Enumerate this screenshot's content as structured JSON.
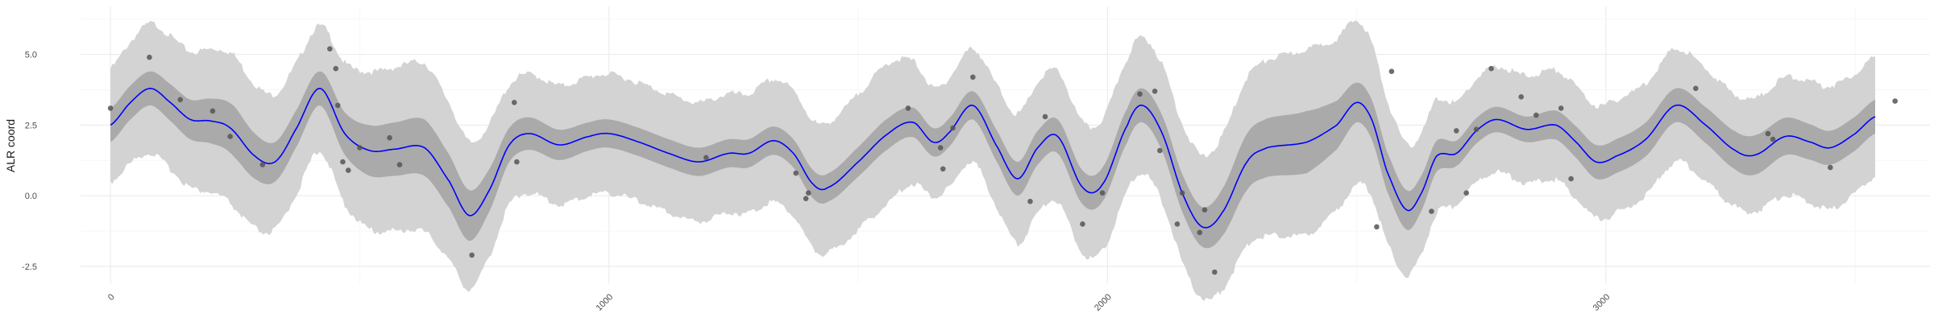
{
  "chart_data": {
    "type": "line",
    "title": "",
    "xlabel": "",
    "ylabel": "ALR coord",
    "xlim": [
      -60,
      3650
    ],
    "ylim": [
      -3.1,
      6.7
    ],
    "grid": true,
    "x_ticks": [
      {
        "value": 0,
        "label": "0"
      },
      {
        "value": 1000,
        "label": "1000"
      },
      {
        "value": 2000,
        "label": "2000"
      },
      {
        "value": 3000,
        "label": "3000"
      }
    ],
    "y_ticks": [
      {
        "value": -2.5,
        "label": "-2.5"
      },
      {
        "value": 0,
        "label": "0.0"
      },
      {
        "value": 2.5,
        "label": "2.5"
      },
      {
        "value": 5,
        "label": "5.0"
      }
    ],
    "colors": {
      "mean_line": "#0000ff",
      "inner_band": "#aaaaaa",
      "outer_band": "#d3d3d3",
      "points": "#555555"
    },
    "mean_curve": [
      {
        "x": 0,
        "y": 2.5
      },
      {
        "x": 40,
        "y": 3.3
      },
      {
        "x": 80,
        "y": 3.8
      },
      {
        "x": 120,
        "y": 3.3
      },
      {
        "x": 160,
        "y": 2.7
      },
      {
        "x": 200,
        "y": 2.65
      },
      {
        "x": 240,
        "y": 2.4
      },
      {
        "x": 290,
        "y": 1.4
      },
      {
        "x": 330,
        "y": 1.2
      },
      {
        "x": 370,
        "y": 2.3
      },
      {
        "x": 420,
        "y": 3.8
      },
      {
        "x": 470,
        "y": 2.2
      },
      {
        "x": 520,
        "y": 1.6
      },
      {
        "x": 570,
        "y": 1.65
      },
      {
        "x": 630,
        "y": 1.7
      },
      {
        "x": 680,
        "y": 0.5
      },
      {
        "x": 720,
        "y": -0.7
      },
      {
        "x": 760,
        "y": 0.2
      },
      {
        "x": 800,
        "y": 1.8
      },
      {
        "x": 840,
        "y": 2.2
      },
      {
        "x": 900,
        "y": 1.8
      },
      {
        "x": 960,
        "y": 2.1
      },
      {
        "x": 1000,
        "y": 2.2
      },
      {
        "x": 1060,
        "y": 1.9
      },
      {
        "x": 1120,
        "y": 1.5
      },
      {
        "x": 1180,
        "y": 1.2
      },
      {
        "x": 1240,
        "y": 1.5
      },
      {
        "x": 1280,
        "y": 1.5
      },
      {
        "x": 1330,
        "y": 1.95
      },
      {
        "x": 1370,
        "y": 1.5
      },
      {
        "x": 1410,
        "y": 0.4
      },
      {
        "x": 1440,
        "y": 0.3
      },
      {
        "x": 1500,
        "y": 1.2
      },
      {
        "x": 1560,
        "y": 2.2
      },
      {
        "x": 1610,
        "y": 2.6
      },
      {
        "x": 1650,
        "y": 1.9
      },
      {
        "x": 1680,
        "y": 2.2
      },
      {
        "x": 1730,
        "y": 3.2
      },
      {
        "x": 1780,
        "y": 1.7
      },
      {
        "x": 1820,
        "y": 0.6
      },
      {
        "x": 1860,
        "y": 1.7
      },
      {
        "x": 1900,
        "y": 2.1
      },
      {
        "x": 1950,
        "y": 0.3
      },
      {
        "x": 1990,
        "y": 0.4
      },
      {
        "x": 2040,
        "y": 2.5
      },
      {
        "x": 2070,
        "y": 3.2
      },
      {
        "x": 2110,
        "y": 2.2
      },
      {
        "x": 2150,
        "y": 0.1
      },
      {
        "x": 2190,
        "y": -1.1
      },
      {
        "x": 2230,
        "y": -0.6
      },
      {
        "x": 2280,
        "y": 1.2
      },
      {
        "x": 2320,
        "y": 1.7
      },
      {
        "x": 2400,
        "y": 1.9
      },
      {
        "x": 2460,
        "y": 2.5
      },
      {
        "x": 2500,
        "y": 3.3
      },
      {
        "x": 2530,
        "y": 2.7
      },
      {
        "x": 2560,
        "y": 0.9
      },
      {
        "x": 2600,
        "y": -0.5
      },
      {
        "x": 2630,
        "y": 0.1
      },
      {
        "x": 2660,
        "y": 1.4
      },
      {
        "x": 2700,
        "y": 1.5
      },
      {
        "x": 2740,
        "y": 2.3
      },
      {
        "x": 2780,
        "y": 2.7
      },
      {
        "x": 2840,
        "y": 2.35
      },
      {
        "x": 2900,
        "y": 2.5
      },
      {
        "x": 2940,
        "y": 1.9
      },
      {
        "x": 2980,
        "y": 1.2
      },
      {
        "x": 3020,
        "y": 1.4
      },
      {
        "x": 3080,
        "y": 2.0
      },
      {
        "x": 3140,
        "y": 3.2
      },
      {
        "x": 3200,
        "y": 2.5
      },
      {
        "x": 3260,
        "y": 1.6
      },
      {
        "x": 3300,
        "y": 1.45
      },
      {
        "x": 3360,
        "y": 2.1
      },
      {
        "x": 3410,
        "y": 1.9
      },
      {
        "x": 3450,
        "y": 1.7
      },
      {
        "x": 3500,
        "y": 2.2
      },
      {
        "x": 3540,
        "y": 2.8
      }
    ],
    "inner_band_halfwidth": [
      {
        "x": 0,
        "y": 0.6
      },
      {
        "x": 80,
        "y": 0.6
      },
      {
        "x": 160,
        "y": 0.7
      },
      {
        "x": 250,
        "y": 0.9
      },
      {
        "x": 330,
        "y": 0.7
      },
      {
        "x": 420,
        "y": 0.6
      },
      {
        "x": 520,
        "y": 0.9
      },
      {
        "x": 630,
        "y": 1.0
      },
      {
        "x": 720,
        "y": 0.9
      },
      {
        "x": 800,
        "y": 0.6
      },
      {
        "x": 960,
        "y": 0.5
      },
      {
        "x": 1120,
        "y": 0.5
      },
      {
        "x": 1280,
        "y": 0.5
      },
      {
        "x": 1440,
        "y": 0.5
      },
      {
        "x": 1560,
        "y": 0.55
      },
      {
        "x": 1650,
        "y": 0.5
      },
      {
        "x": 1730,
        "y": 0.5
      },
      {
        "x": 1820,
        "y": 0.6
      },
      {
        "x": 1950,
        "y": 0.6
      },
      {
        "x": 2070,
        "y": 0.6
      },
      {
        "x": 2190,
        "y": 0.7
      },
      {
        "x": 2280,
        "y": 1.0
      },
      {
        "x": 2400,
        "y": 1.1
      },
      {
        "x": 2500,
        "y": 0.7
      },
      {
        "x": 2600,
        "y": 0.7
      },
      {
        "x": 2700,
        "y": 0.45
      },
      {
        "x": 2840,
        "y": 0.45
      },
      {
        "x": 2980,
        "y": 0.6
      },
      {
        "x": 3140,
        "y": 0.6
      },
      {
        "x": 3300,
        "y": 0.7
      },
      {
        "x": 3450,
        "y": 0.6
      },
      {
        "x": 3540,
        "y": 0.6
      }
    ],
    "outer_band_halfwidth": [
      {
        "x": 0,
        "y": 2.0
      },
      {
        "x": 80,
        "y": 2.3
      },
      {
        "x": 160,
        "y": 2.4
      },
      {
        "x": 250,
        "y": 2.7
      },
      {
        "x": 330,
        "y": 2.4
      },
      {
        "x": 420,
        "y": 2.2
      },
      {
        "x": 520,
        "y": 2.8
      },
      {
        "x": 630,
        "y": 3.0
      },
      {
        "x": 720,
        "y": 2.6
      },
      {
        "x": 800,
        "y": 2.1
      },
      {
        "x": 960,
        "y": 2.1
      },
      {
        "x": 1120,
        "y": 2.1
      },
      {
        "x": 1280,
        "y": 2.1
      },
      {
        "x": 1440,
        "y": 2.3
      },
      {
        "x": 1560,
        "y": 2.5
      },
      {
        "x": 1650,
        "y": 1.9
      },
      {
        "x": 1730,
        "y": 2.0
      },
      {
        "x": 1820,
        "y": 2.3
      },
      {
        "x": 1950,
        "y": 2.3
      },
      {
        "x": 2070,
        "y": 2.4
      },
      {
        "x": 2190,
        "y": 2.5
      },
      {
        "x": 2280,
        "y": 3.0
      },
      {
        "x": 2400,
        "y": 3.3
      },
      {
        "x": 2500,
        "y": 2.9
      },
      {
        "x": 2600,
        "y": 2.3
      },
      {
        "x": 2700,
        "y": 1.8
      },
      {
        "x": 2840,
        "y": 1.9
      },
      {
        "x": 2980,
        "y": 2.0
      },
      {
        "x": 3140,
        "y": 2.0
      },
      {
        "x": 3300,
        "y": 2.0
      },
      {
        "x": 3450,
        "y": 2.2
      },
      {
        "x": 3540,
        "y": 2.1
      }
    ],
    "points": [
      {
        "x": 0,
        "y": 3.1
      },
      {
        "x": 78,
        "y": 4.9
      },
      {
        "x": 140,
        "y": 3.4
      },
      {
        "x": 205,
        "y": 3.0
      },
      {
        "x": 240,
        "y": 2.1
      },
      {
        "x": 305,
        "y": 1.1
      },
      {
        "x": 440,
        "y": 5.2
      },
      {
        "x": 452,
        "y": 4.5
      },
      {
        "x": 456,
        "y": 3.2
      },
      {
        "x": 466,
        "y": 1.2
      },
      {
        "x": 477,
        "y": 0.9
      },
      {
        "x": 500,
        "y": 1.7
      },
      {
        "x": 560,
        "y": 2.05
      },
      {
        "x": 580,
        "y": 1.1
      },
      {
        "x": 725,
        "y": -2.1
      },
      {
        "x": 810,
        "y": 3.3
      },
      {
        "x": 815,
        "y": 1.2
      },
      {
        "x": 1195,
        "y": 1.35
      },
      {
        "x": 1375,
        "y": 0.8
      },
      {
        "x": 1395,
        "y": -0.1
      },
      {
        "x": 1400,
        "y": 0.1
      },
      {
        "x": 1600,
        "y": 3.1
      },
      {
        "x": 1665,
        "y": 1.7
      },
      {
        "x": 1670,
        "y": 0.95
      },
      {
        "x": 1690,
        "y": 2.4
      },
      {
        "x": 1730,
        "y": 4.2
      },
      {
        "x": 1845,
        "y": -0.2
      },
      {
        "x": 1875,
        "y": 2.8
      },
      {
        "x": 1950,
        "y": -1.0
      },
      {
        "x": 1990,
        "y": 0.1
      },
      {
        "x": 2065,
        "y": 3.6
      },
      {
        "x": 2095,
        "y": 3.7
      },
      {
        "x": 2105,
        "y": 1.6
      },
      {
        "x": 2140,
        "y": -1.0
      },
      {
        "x": 2150,
        "y": 0.1
      },
      {
        "x": 2185,
        "y": -1.3
      },
      {
        "x": 2195,
        "y": -0.5
      },
      {
        "x": 2215,
        "y": -2.7
      },
      {
        "x": 2570,
        "y": 4.4
      },
      {
        "x": 2540,
        "y": -1.1
      },
      {
        "x": 2650,
        "y": -0.55
      },
      {
        "x": 2700,
        "y": 2.3
      },
      {
        "x": 2720,
        "y": 0.1
      },
      {
        "x": 2740,
        "y": 2.35
      },
      {
        "x": 2770,
        "y": 4.5
      },
      {
        "x": 2830,
        "y": 3.5
      },
      {
        "x": 2860,
        "y": 2.85
      },
      {
        "x": 2910,
        "y": 3.1
      },
      {
        "x": 2930,
        "y": 0.6
      },
      {
        "x": 3180,
        "y": 3.8
      },
      {
        "x": 3325,
        "y": 2.2
      },
      {
        "x": 3335,
        "y": 2.0
      },
      {
        "x": 3450,
        "y": 1.0
      },
      {
        "x": 3580,
        "y": 3.35
      }
    ]
  }
}
